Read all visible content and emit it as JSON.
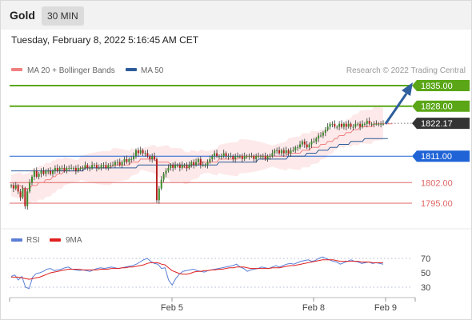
{
  "header": {
    "title": "Gold",
    "timeframe": "30 MIN"
  },
  "datetime": "Tuesday, February 8, 2022 5:16:45 AM CET",
  "legend": {
    "items": [
      {
        "label": "MA 20 + Bollinger Bands",
        "color": "#f08080"
      },
      {
        "label": "MA 50",
        "color": "#2e5c9a"
      }
    ],
    "credit": "Research © 2022 Trading Central"
  },
  "rsi_legend": {
    "items": [
      {
        "label": "RSI",
        "color": "#5b7fd6"
      },
      {
        "label": "9MA",
        "color": "#e02020"
      }
    ]
  },
  "colors": {
    "resistance": "#5aa617",
    "pivot": "#1f63d6",
    "support": "#e06666",
    "last": "#333333",
    "band": "#fde4e4",
    "ma20": "#f08080",
    "ma50": "#2e5c9a",
    "arrow": "#2f5f9e",
    "candle_up": "#3a8a2a",
    "candle_down": "#b52020"
  },
  "chart_data": [
    {
      "type": "candlestick",
      "title": "Gold",
      "timeframe": "30 MIN",
      "ylim": [
        1791,
        1838
      ],
      "x_ticks": [
        "Feb 5",
        "Feb 8",
        "Feb 9"
      ],
      "levels": [
        {
          "label": "1835.00",
          "value": 1835.0,
          "kind": "resistance"
        },
        {
          "label": "1828.00",
          "value": 1828.0,
          "kind": "resistance"
        },
        {
          "label": "1822.17",
          "value": 1822.17,
          "kind": "last"
        },
        {
          "label": "1811.00",
          "value": 1811.0,
          "kind": "pivot"
        },
        {
          "label": "1802.00",
          "value": 1802.0,
          "kind": "support"
        },
        {
          "label": "1795.00",
          "value": 1795.0,
          "kind": "support"
        }
      ],
      "projection": {
        "from": 1822.0,
        "to": 1835.0
      },
      "close": [
        1801,
        1800,
        1801,
        1799,
        1797,
        1800,
        1794,
        1799,
        1802,
        1804,
        1806,
        1804,
        1805,
        1806,
        1805,
        1806,
        1806,
        1805,
        1806,
        1807,
        1806,
        1807,
        1807,
        1806,
        1807,
        1807,
        1807,
        1807,
        1806,
        1807,
        1807,
        1807,
        1808,
        1807,
        1807,
        1808,
        1808,
        1807,
        1807,
        1808,
        1808,
        1807,
        1808,
        1808,
        1808,
        1809,
        1809,
        1808,
        1809,
        1810,
        1809,
        1810,
        1810,
        1811,
        1813,
        1812,
        1813,
        1812,
        1812,
        1811,
        1810,
        1811,
        1810,
        1796,
        1800,
        1803,
        1805,
        1806,
        1807,
        1808,
        1807,
        1808,
        1808,
        1807,
        1808,
        1808,
        1807,
        1808,
        1809,
        1808,
        1809,
        1810,
        1808,
        1808,
        1808,
        1809,
        1810,
        1811,
        1812,
        1811,
        1811,
        1811,
        1812,
        1811,
        1811,
        1811,
        1810,
        1811,
        1811,
        1811,
        1810,
        1811,
        1811,
        1811,
        1811,
        1810,
        1811,
        1811,
        1811,
        1811,
        1810,
        1811,
        1811,
        1812,
        1813,
        1813,
        1812,
        1813,
        1812,
        1813,
        1812,
        1813,
        1813,
        1814,
        1814,
        1815,
        1816,
        1815,
        1814,
        1815,
        1816,
        1816,
        1817,
        1818,
        1818,
        1819,
        1820,
        1821,
        1822,
        1822,
        1821,
        1821,
        1822,
        1821,
        1822,
        1821,
        1822,
        1821,
        1821,
        1822,
        1822,
        1821,
        1822,
        1822,
        1823,
        1822,
        1822,
        1822,
        1822,
        1822,
        1822,
        1822
      ],
      "ma20": [
        1801,
        1801,
        1801,
        1801,
        1801,
        1800,
        1800,
        1800,
        1800,
        1801,
        1801,
        1801,
        1802,
        1802,
        1802,
        1803,
        1803,
        1803,
        1804,
        1804,
        1805,
        1805,
        1805,
        1806,
        1806,
        1806,
        1806,
        1806,
        1806,
        1806,
        1807,
        1807,
        1807,
        1807,
        1807,
        1807,
        1807,
        1807,
        1807,
        1807,
        1807,
        1807,
        1807,
        1807,
        1808,
        1808,
        1808,
        1808,
        1808,
        1808,
        1808,
        1808,
        1809,
        1809,
        1809,
        1809,
        1810,
        1810,
        1810,
        1810,
        1810,
        1810,
        1810,
        1809,
        1809,
        1809,
        1809,
        1809,
        1809,
        1808,
        1808,
        1808,
        1808,
        1808,
        1808,
        1807,
        1807,
        1807,
        1808,
        1808,
        1808,
        1808,
        1809,
        1809,
        1809,
        1809,
        1809,
        1809,
        1809,
        1809,
        1810,
        1810,
        1810,
        1810,
        1810,
        1810,
        1810,
        1810,
        1810,
        1811,
        1811,
        1811,
        1811,
        1811,
        1811,
        1811,
        1811,
        1811,
        1811,
        1811,
        1811,
        1811,
        1811,
        1811,
        1811,
        1811,
        1811,
        1811,
        1811,
        1811,
        1812,
        1812,
        1812,
        1812,
        1812,
        1812,
        1813,
        1813,
        1813,
        1813,
        1814,
        1814,
        1814,
        1814,
        1815,
        1815,
        1815,
        1816,
        1816,
        1816,
        1817,
        1817,
        1818,
        1818,
        1818,
        1819,
        1819,
        1819,
        1820,
        1820,
        1820,
        1821,
        1821,
        1821,
        1821,
        1821,
        1821,
        1822,
        1822,
        1822,
        1822,
        1822,
        1822,
        1822,
        1822,
        1822
      ],
      "ma50": [
        1806,
        1806,
        1806,
        1806,
        1806,
        1806,
        1806,
        1806,
        1806,
        1806,
        1806,
        1806,
        1806,
        1806,
        1806,
        1806,
        1806,
        1806,
        1806,
        1806,
        1806,
        1806,
        1806,
        1806,
        1806,
        1806,
        1806,
        1806,
        1806,
        1806,
        1806,
        1806,
        1807,
        1807,
        1807,
        1807,
        1807,
        1807,
        1807,
        1807,
        1807,
        1807,
        1807,
        1807,
        1807,
        1807,
        1807,
        1807,
        1807,
        1807,
        1807,
        1807,
        1807,
        1807,
        1807,
        1808,
        1808,
        1808,
        1808,
        1808,
        1808,
        1808,
        1808,
        1808,
        1808,
        1808,
        1808,
        1808,
        1808,
        1808,
        1808,
        1808,
        1808,
        1808,
        1808,
        1808,
        1808,
        1808,
        1808,
        1808,
        1808,
        1808,
        1808,
        1808,
        1808,
        1808,
        1808,
        1808,
        1808,
        1808,
        1809,
        1809,
        1809,
        1809,
        1809,
        1809,
        1809,
        1809,
        1809,
        1809,
        1809,
        1809,
        1809,
        1809,
        1809,
        1809,
        1809,
        1810,
        1810,
        1810,
        1810,
        1810,
        1810,
        1810,
        1810,
        1810,
        1810,
        1810,
        1810,
        1810,
        1811,
        1811,
        1811,
        1811,
        1811,
        1811,
        1811,
        1811,
        1812,
        1812,
        1812,
        1812,
        1812,
        1813,
        1813,
        1813,
        1813,
        1813,
        1814,
        1814,
        1814,
        1814,
        1815,
        1815,
        1815,
        1815,
        1815,
        1816,
        1816,
        1816,
        1816,
        1816,
        1816,
        1817,
        1817,
        1817,
        1817,
        1817,
        1817,
        1817,
        1817,
        1817,
        1817,
        1817
      ]
    },
    {
      "type": "line",
      "title": "RSI",
      "ylim": [
        20,
        80
      ],
      "y_ticks": [
        70,
        50,
        30
      ],
      "x_ticks": [
        "Feb 5",
        "Feb 8",
        "Feb 9"
      ],
      "series": [
        {
          "name": "RSI",
          "color": "#5b7fd6",
          "values": [
            45,
            47,
            40,
            45,
            30,
            28,
            44,
            49,
            50,
            52,
            55,
            56,
            53,
            54,
            55,
            57,
            58,
            55,
            54,
            53,
            54,
            53,
            52,
            54,
            56,
            57,
            56,
            57,
            58,
            57,
            56,
            57,
            58,
            59,
            60,
            62,
            65,
            68,
            70,
            66,
            63,
            62,
            56,
            57,
            40,
            33,
            42,
            48,
            52,
            53,
            54,
            55,
            53,
            52,
            51,
            53,
            54,
            55,
            56,
            57,
            58,
            59,
            60,
            62,
            58,
            56,
            52,
            54,
            55,
            56,
            58,
            57,
            56,
            58,
            60,
            58,
            60,
            62,
            63,
            62,
            64,
            66,
            67,
            68,
            66,
            67,
            70,
            72,
            70,
            68,
            66,
            65,
            62,
            64,
            66,
            68,
            66,
            65,
            63,
            64,
            65,
            63,
            64,
            63,
            62
          ]
        },
        {
          "name": "9MA",
          "color": "#e02020",
          "values": [
            44,
            44,
            44,
            43,
            42,
            41,
            42,
            43,
            44,
            46,
            48,
            50,
            51,
            52,
            53,
            54,
            55,
            55,
            55,
            55,
            54,
            54,
            54,
            54,
            54,
            55,
            55,
            55,
            56,
            56,
            56,
            57,
            57,
            58,
            58,
            59,
            60,
            61,
            63,
            64,
            64,
            64,
            62,
            61,
            57,
            53,
            51,
            49,
            48,
            48,
            49,
            51,
            52,
            52,
            53,
            53,
            54,
            54,
            55,
            55,
            56,
            57,
            57,
            58,
            58,
            58,
            57,
            56,
            56,
            56,
            56,
            56,
            56,
            57,
            57,
            57,
            58,
            59,
            60,
            60,
            61,
            62,
            63,
            64,
            65,
            66,
            67,
            68,
            68,
            68,
            68,
            67,
            66,
            66,
            66,
            66,
            66,
            66,
            65,
            65,
            65,
            64,
            64,
            64,
            64
          ]
        }
      ]
    }
  ]
}
